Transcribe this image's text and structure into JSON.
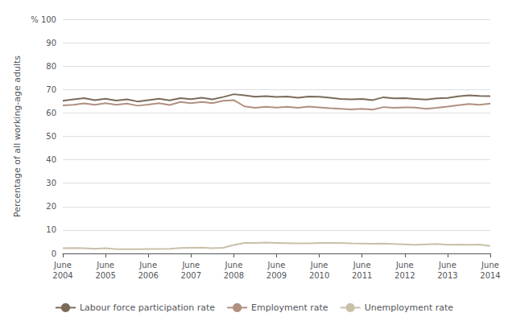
{
  "chart_data": {
    "type": "line",
    "ylabel": "Percentage of all working-age adults",
    "categories": [
      "June\n2004",
      null,
      null,
      null,
      "June\n2005",
      null,
      null,
      null,
      "June\n2006",
      null,
      null,
      null,
      "June\n2007",
      null,
      null,
      null,
      "June\n2008",
      null,
      null,
      null,
      "June\n2009",
      null,
      null,
      null,
      "June\n2010",
      null,
      null,
      null,
      "June\n2011",
      null,
      null,
      null,
      "June\n2012",
      null,
      null,
      null,
      "June\n2013",
      null,
      null,
      null,
      "June\n2014"
    ],
    "series": [
      {
        "name": "Labour force participation rate",
        "color": "#7b6b5b",
        "values": [
          65.2,
          65.8,
          66.3,
          65.5,
          66.1,
          65.3,
          65.8,
          64.9,
          65.5,
          66.1,
          65.4,
          66.3,
          65.9,
          66.5,
          65.8,
          66.8,
          68.0,
          67.5,
          66.9,
          67.2,
          66.8,
          67.0,
          66.5,
          67.0,
          66.9,
          66.5,
          66.0,
          65.8,
          66.0,
          65.5,
          66.7,
          66.2,
          66.3,
          66.0,
          65.7,
          66.2,
          66.4,
          67.1,
          67.5,
          67.3,
          67.2
        ]
      },
      {
        "name": "Employment rate",
        "color": "#b09080",
        "values": [
          63.2,
          63.5,
          64.1,
          63.5,
          64.2,
          63.5,
          64.0,
          63.1,
          63.6,
          64.2,
          63.4,
          64.7,
          64.2,
          64.7,
          64.2,
          65.2,
          65.5,
          62.8,
          62.2,
          62.6,
          62.3,
          62.6,
          62.2,
          62.7,
          62.4,
          62.0,
          61.8,
          61.5,
          61.8,
          61.4,
          62.5,
          62.2,
          62.4,
          62.3,
          61.8,
          62.2,
          62.7,
          63.3,
          63.8,
          63.5,
          64.0
        ]
      },
      {
        "name": "Unemployment rate",
        "color": "#c8c0a8",
        "values": [
          2.2,
          2.3,
          2.2,
          2.0,
          2.2,
          1.8,
          1.8,
          1.8,
          1.9,
          1.9,
          2.0,
          2.3,
          2.4,
          2.5,
          2.2,
          2.4,
          3.6,
          4.5,
          4.5,
          4.6,
          4.5,
          4.4,
          4.3,
          4.3,
          4.5,
          4.5,
          4.5,
          4.3,
          4.2,
          4.1,
          4.2,
          4.0,
          3.9,
          3.7,
          3.9,
          4.0,
          3.7,
          3.8,
          3.7,
          3.8,
          3.2
        ]
      }
    ],
    "ylim": [
      0,
      100
    ],
    "yticks": [
      0,
      10,
      20,
      30,
      40,
      50,
      60,
      70,
      80,
      90,
      {
        "value": 100,
        "label": "% 100"
      }
    ],
    "grid": true,
    "legend": "bottom"
  }
}
